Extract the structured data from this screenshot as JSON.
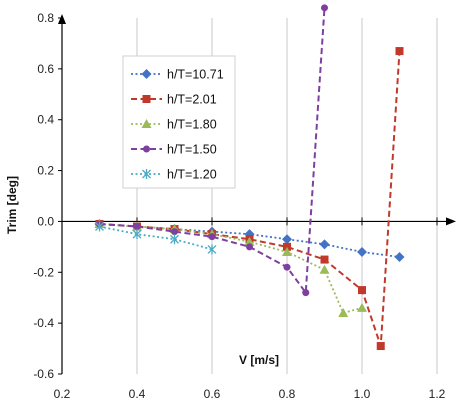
{
  "chart_data": {
    "type": "line",
    "xlabel": "V [m/s]",
    "ylabel": "Trim [deg]",
    "xlim": [
      0.2,
      1.2
    ],
    "ylim": [
      -0.6,
      0.8
    ],
    "xticks": [
      0.2,
      0.4,
      0.6,
      0.8,
      1.0,
      1.2
    ],
    "xtick_labels": [
      "0.2",
      "0.4",
      "0.6",
      "0.8",
      "1.0",
      "1.2"
    ],
    "yticks": [
      -0.6,
      -0.4,
      -0.2,
      0.0,
      0.2,
      0.4,
      0.6,
      0.8
    ],
    "ytick_labels": [
      "-0.6",
      "-0.4",
      "-0.2",
      "0.0",
      "0.2",
      "0.4",
      "0.6",
      "0.8"
    ],
    "grid": "vertical",
    "legend_position": "top-left",
    "series": [
      {
        "name": "h/T=10.71",
        "color": "#4472c4",
        "marker": "diamond",
        "line_style": "dotted",
        "x": [
          0.3,
          0.4,
          0.5,
          0.6,
          0.7,
          0.8,
          0.9,
          1.0,
          1.1
        ],
        "y": [
          -0.01,
          -0.02,
          -0.03,
          -0.04,
          -0.05,
          -0.07,
          -0.09,
          -0.12,
          -0.14
        ]
      },
      {
        "name": "h/T=2.01",
        "color": "#c0392b",
        "marker": "square",
        "line_style": "dashed",
        "x": [
          0.3,
          0.4,
          0.5,
          0.6,
          0.7,
          0.8,
          0.9,
          1.0,
          1.05,
          1.1
        ],
        "y": [
          -0.01,
          -0.02,
          -0.03,
          -0.05,
          -0.07,
          -0.1,
          -0.15,
          -0.27,
          -0.49,
          0.67
        ]
      },
      {
        "name": "h/T=1.80",
        "color": "#9bbb59",
        "marker": "triangle",
        "line_style": "dotted",
        "x": [
          0.3,
          0.4,
          0.5,
          0.6,
          0.7,
          0.8,
          0.9,
          0.95,
          1.0
        ],
        "y": [
          -0.01,
          -0.02,
          -0.03,
          -0.05,
          -0.08,
          -0.12,
          -0.19,
          -0.36,
          -0.34
        ]
      },
      {
        "name": "h/T=1.50",
        "color": "#7e3fa0",
        "marker": "circle",
        "line_style": "dashed",
        "x": [
          0.3,
          0.4,
          0.5,
          0.6,
          0.7,
          0.8,
          0.85,
          0.9
        ],
        "y": [
          -0.01,
          -0.02,
          -0.04,
          -0.06,
          -0.1,
          -0.18,
          -0.28,
          0.84
        ]
      },
      {
        "name": "h/T=1.20",
        "color": "#4bacc6",
        "marker": "asterisk",
        "line_style": "dotted",
        "x": [
          0.3,
          0.4,
          0.5,
          0.6
        ],
        "y": [
          -0.02,
          -0.05,
          -0.07,
          -0.11
        ]
      }
    ]
  }
}
